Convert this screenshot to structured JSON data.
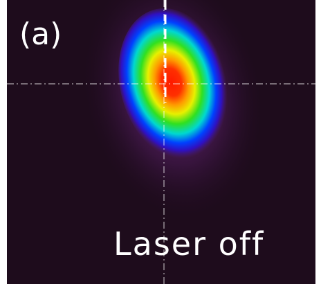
{
  "panel_label": "(a)",
  "caption": "Laser off"
}
